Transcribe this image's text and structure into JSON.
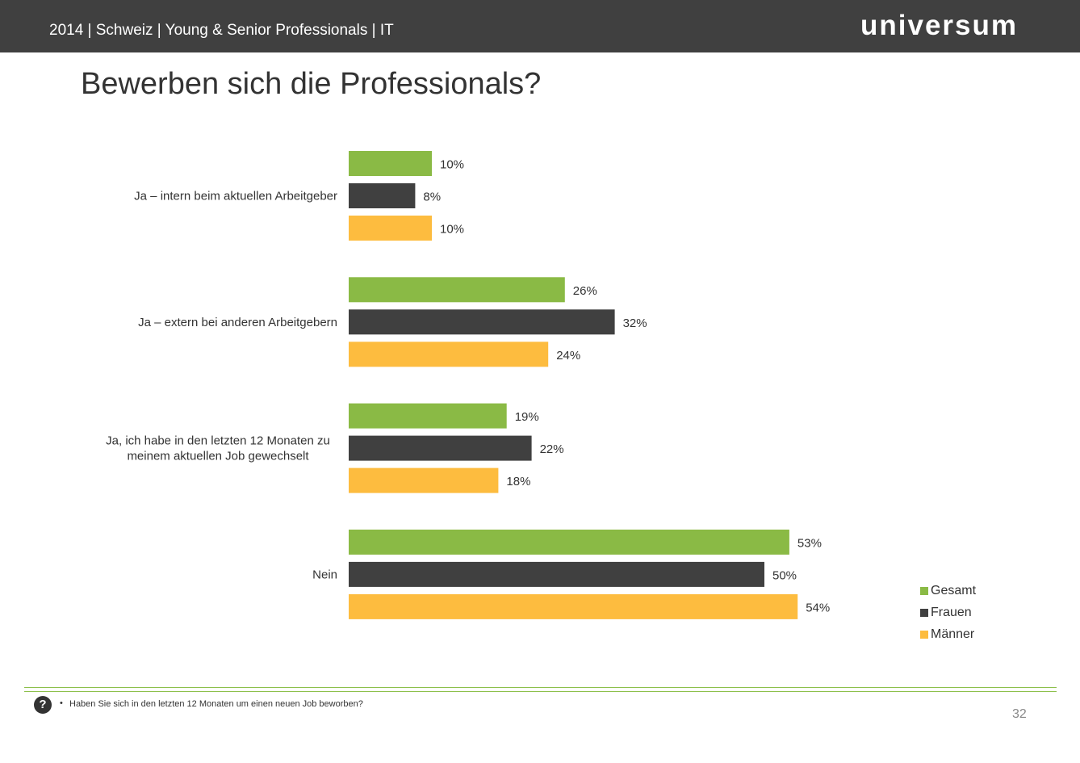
{
  "header": {
    "title": "2014 | Schweiz | Young & Senior Professionals | IT",
    "brand": "universum"
  },
  "page_title": "Bewerben sich die Professionals?",
  "chart_data": {
    "type": "bar",
    "orientation": "horizontal",
    "title": "Bewerben sich die Professionals?",
    "categories": [
      "Ja – intern beim aktuellen Arbeitgeber",
      "Ja – extern bei anderen Arbeitgebern",
      "Ja, ich habe in den letzten 12 Monaten zu meinem aktuellen Job gewechselt",
      "Nein"
    ],
    "category_lines": [
      [
        "Ja – intern beim aktuellen Arbeitgeber"
      ],
      [
        "Ja – extern bei anderen Arbeitgebern"
      ],
      [
        "Ja, ich habe in den letzten 12 Monaten zu",
        "meinem aktuellen Job gewechselt"
      ],
      [
        "Nein"
      ]
    ],
    "series": [
      {
        "name": "Gesamt",
        "color": "#8aba45",
        "values": [
          10,
          26,
          19,
          53
        ],
        "labels": [
          "10%",
          "26%",
          "19%",
          "53%"
        ]
      },
      {
        "name": "Frauen",
        "color": "#404040",
        "values": [
          8,
          32,
          22,
          50
        ],
        "labels": [
          "8%",
          "32%",
          "22%",
          "50%"
        ]
      },
      {
        "name": "Männer",
        "color": "#fdbc3f",
        "values": [
          10,
          24,
          18,
          54
        ],
        "labels": [
          "10%",
          "24%",
          "18%",
          "54%"
        ]
      }
    ],
    "unit": "%",
    "legend_position": "bottom-right",
    "grid": false
  },
  "legend": {
    "items": [
      {
        "label": "Gesamt",
        "color": "#8aba45"
      },
      {
        "label": "Frauen",
        "color": "#404040"
      },
      {
        "label": "Männer",
        "color": "#fdbc3f"
      }
    ]
  },
  "footer": {
    "question_icon": "question-mark-icon",
    "bullet": "•",
    "question": "Haben Sie sich in den letzten 12 Monaten um einen neuen Job beworben?",
    "page_number": "32"
  }
}
